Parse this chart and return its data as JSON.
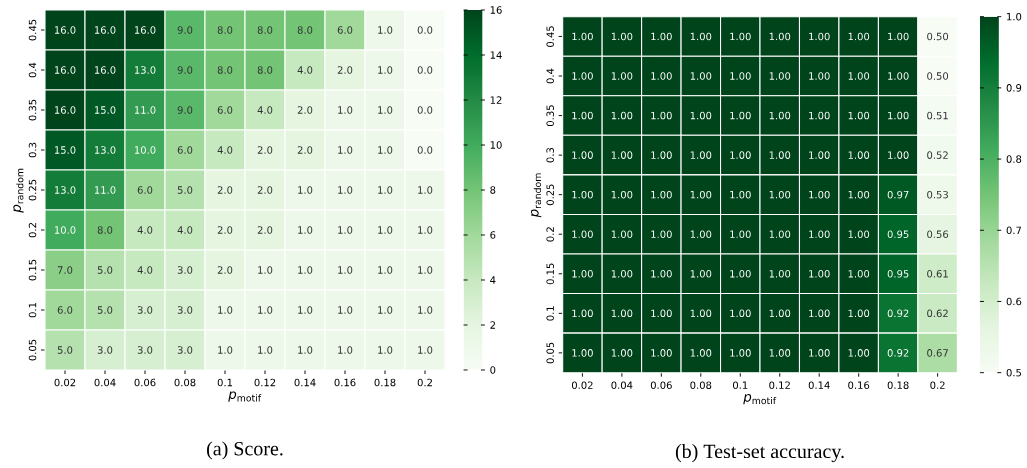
{
  "chart_data": [
    {
      "type": "heatmap",
      "annotations": [
        "(a) Score."
      ],
      "xlabel": "*p*$_{motif}$",
      "ylabel": "*p*$_{random}$",
      "categories": [
        "0.02",
        "0.04",
        "0.06",
        "0.08",
        "0.1",
        "0.12",
        "0.14",
        "0.16",
        "0.18",
        "0.2"
      ],
      "y_categories": [
        "0.45",
        "0.4",
        "0.35",
        "0.3",
        "0.25",
        "0.2",
        "0.15",
        "0.1",
        "0.05"
      ],
      "cells": [
        [
          16,
          16,
          16,
          9,
          8,
          8,
          8,
          6,
          1,
          0
        ],
        [
          16,
          16,
          13,
          9,
          8,
          8,
          4,
          2,
          1,
          0
        ],
        [
          16,
          15,
          11,
          9,
          6,
          4,
          2,
          1,
          1,
          0
        ],
        [
          15,
          13,
          10,
          6,
          4,
          2,
          2,
          1,
          1,
          0
        ],
        [
          13,
          11,
          6,
          5,
          2,
          2,
          1,
          1,
          1,
          1
        ],
        [
          10,
          8,
          4,
          4,
          2,
          2,
          1,
          1,
          1,
          1
        ],
        [
          7,
          5,
          4,
          3,
          2,
          1,
          1,
          1,
          1,
          1
        ],
        [
          6,
          5,
          3,
          3,
          1,
          1,
          1,
          1,
          1,
          1
        ],
        [
          5,
          3,
          3,
          3,
          1,
          1,
          1,
          1,
          1,
          1
        ]
      ],
      "cell_labels": [
        [
          "16.0",
          "16.0",
          "16.0",
          "9.0",
          "8.0",
          "8.0",
          "8.0",
          "6.0",
          "1.0",
          "0.0"
        ],
        [
          "16.0",
          "16.0",
          "13.0",
          "9.0",
          "8.0",
          "8.0",
          "4.0",
          "2.0",
          "1.0",
          "0.0"
        ],
        [
          "16.0",
          "15.0",
          "11.0",
          "9.0",
          "6.0",
          "4.0",
          "2.0",
          "1.0",
          "1.0",
          "0.0"
        ],
        [
          "15.0",
          "13.0",
          "10.0",
          "6.0",
          "4.0",
          "2.0",
          "2.0",
          "1.0",
          "1.0",
          "0.0"
        ],
        [
          "13.0",
          "11.0",
          "6.0",
          "5.0",
          "2.0",
          "2.0",
          "1.0",
          "1.0",
          "1.0",
          "1.0"
        ],
        [
          "10.0",
          "8.0",
          "4.0",
          "4.0",
          "2.0",
          "2.0",
          "1.0",
          "1.0",
          "1.0",
          "1.0"
        ],
        [
          "7.0",
          "5.0",
          "4.0",
          "3.0",
          "2.0",
          "1.0",
          "1.0",
          "1.0",
          "1.0",
          "1.0"
        ],
        [
          "6.0",
          "5.0",
          "3.0",
          "3.0",
          "1.0",
          "1.0",
          "1.0",
          "1.0",
          "1.0",
          "1.0"
        ],
        [
          "5.0",
          "3.0",
          "3.0",
          "3.0",
          "1.0",
          "1.0",
          "1.0",
          "1.0",
          "1.0",
          "1.0"
        ]
      ],
      "clim": [
        0,
        16
      ],
      "cticks": [
        0,
        2,
        4,
        6,
        8,
        10,
        12,
        14,
        16
      ]
    },
    {
      "type": "heatmap",
      "annotations": [
        "(b) Test-set accuracy."
      ],
      "xlabel": "*p*$_{motif}$",
      "ylabel": "*p*$_{random}$",
      "categories": [
        "0.02",
        "0.04",
        "0.06",
        "0.08",
        "0.1",
        "0.12",
        "0.14",
        "0.16",
        "0.18",
        "0.2"
      ],
      "y_categories": [
        "0.45",
        "0.4",
        "0.35",
        "0.3",
        "0.25",
        "0.2",
        "0.15",
        "0.1",
        "0.05"
      ],
      "cells": [
        [
          1,
          1,
          1,
          1,
          1,
          1,
          1,
          1,
          1,
          0.5
        ],
        [
          1,
          1,
          1,
          1,
          1,
          1,
          1,
          1,
          1,
          0.5
        ],
        [
          1,
          1,
          1,
          1,
          1,
          1,
          1,
          1,
          1,
          0.51
        ],
        [
          1,
          1,
          1,
          1,
          1,
          1,
          1,
          1,
          1,
          0.52
        ],
        [
          1,
          1,
          1,
          1,
          1,
          1,
          1,
          1,
          0.97,
          0.53
        ],
        [
          1,
          1,
          1,
          1,
          1,
          1,
          1,
          1,
          0.95,
          0.56
        ],
        [
          1,
          1,
          1,
          1,
          1,
          1,
          1,
          1,
          0.95,
          0.61
        ],
        [
          1,
          1,
          1,
          1,
          1,
          1,
          1,
          1,
          0.92,
          0.62
        ],
        [
          1,
          1,
          1,
          1,
          1,
          1,
          1,
          1,
          0.92,
          0.67
        ]
      ],
      "cell_labels": [
        [
          "1.00",
          "1.00",
          "1.00",
          "1.00",
          "1.00",
          "1.00",
          "1.00",
          "1.00",
          "1.00",
          "0.50"
        ],
        [
          "1.00",
          "1.00",
          "1.00",
          "1.00",
          "1.00",
          "1.00",
          "1.00",
          "1.00",
          "1.00",
          "0.50"
        ],
        [
          "1.00",
          "1.00",
          "1.00",
          "1.00",
          "1.00",
          "1.00",
          "1.00",
          "1.00",
          "1.00",
          "0.51"
        ],
        [
          "1.00",
          "1.00",
          "1.00",
          "1.00",
          "1.00",
          "1.00",
          "1.00",
          "1.00",
          "1.00",
          "0.52"
        ],
        [
          "1.00",
          "1.00",
          "1.00",
          "1.00",
          "1.00",
          "1.00",
          "1.00",
          "1.00",
          "0.97",
          "0.53"
        ],
        [
          "1.00",
          "1.00",
          "1.00",
          "1.00",
          "1.00",
          "1.00",
          "1.00",
          "1.00",
          "0.95",
          "0.56"
        ],
        [
          "1.00",
          "1.00",
          "1.00",
          "1.00",
          "1.00",
          "1.00",
          "1.00",
          "1.00",
          "0.95",
          "0.61"
        ],
        [
          "1.00",
          "1.00",
          "1.00",
          "1.00",
          "1.00",
          "1.00",
          "1.00",
          "1.00",
          "0.92",
          "0.62"
        ],
        [
          "1.00",
          "1.00",
          "1.00",
          "1.00",
          "1.00",
          "1.00",
          "1.00",
          "1.00",
          "0.92",
          "0.67"
        ]
      ],
      "clim": [
        0.5,
        1
      ],
      "cticks": [
        0.5,
        0.6,
        0.7,
        0.8,
        0.9,
        {
          "value": 1,
          "label": "1.0"
        }
      ]
    }
  ]
}
